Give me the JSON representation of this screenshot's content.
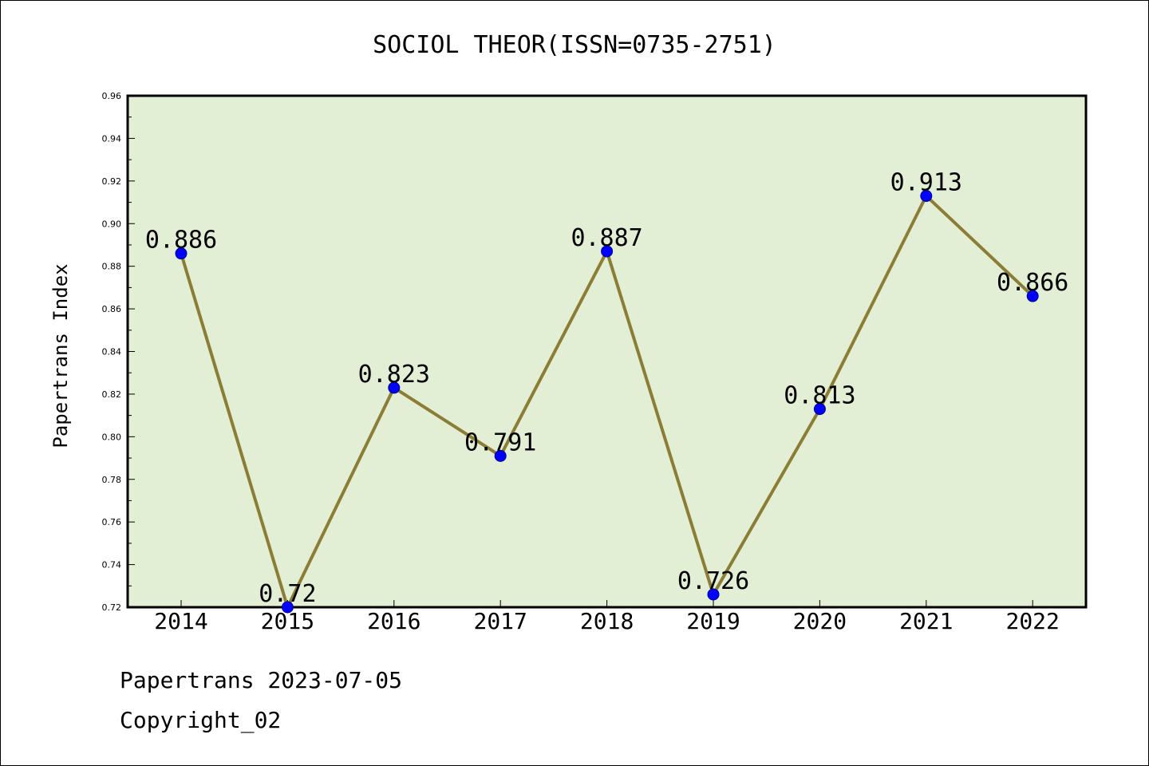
{
  "chart_data": {
    "type": "line",
    "title": "SOCIOL THEOR(ISSN=0735-2751)",
    "ylabel": "Papertrans Index",
    "xlabel": "",
    "categories": [
      "2014",
      "2015",
      "2016",
      "2017",
      "2018",
      "2019",
      "2020",
      "2021",
      "2022"
    ],
    "values": [
      0.886,
      0.72,
      0.823,
      0.791,
      0.887,
      0.726,
      0.813,
      0.913,
      0.866
    ],
    "data_labels": [
      "0.886",
      "0.72",
      "0.823",
      "0.791",
      "0.887",
      "0.726",
      "0.813",
      "0.913",
      "0.866"
    ],
    "ylim": [
      0.72,
      0.96
    ],
    "yticks": [
      "0.72",
      "0.74",
      "0.76",
      "0.78",
      "0.80",
      "0.82",
      "0.84",
      "0.86",
      "0.88",
      "0.90",
      "0.92",
      "0.94",
      "0.96"
    ],
    "grid": false,
    "colors": {
      "plot_background": "#e2efd5",
      "line": "#8b7d35",
      "marker": "#0000ff"
    }
  },
  "footer": {
    "line1": "Papertrans 2023-07-05",
    "line2": "Copyright_02"
  }
}
